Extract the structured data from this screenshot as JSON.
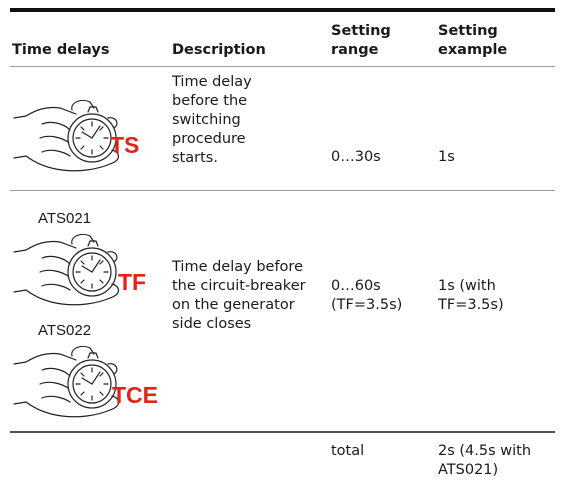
{
  "table": {
    "header": [
      "Time delays",
      "Description",
      "Setting range",
      "Setting example"
    ],
    "rows": [
      {
        "icons": [
          {
            "code": "TS"
          }
        ],
        "description": "Time delay before the switching procedure starts.",
        "range": "0…30s",
        "example": "1s"
      },
      {
        "icons": [
          {
            "model": "ATS021",
            "code": "TF"
          },
          {
            "model": "ATS022",
            "code": "TCE"
          }
        ],
        "description": "Time delay before the circuit-breaker on the generator side closes",
        "range": "0…60s (TF=3.5s)",
        "example": "1s (with TF=3.5s)"
      },
      {
        "range": "total",
        "example": "2s (4.5s with ATS021)"
      }
    ]
  }
}
